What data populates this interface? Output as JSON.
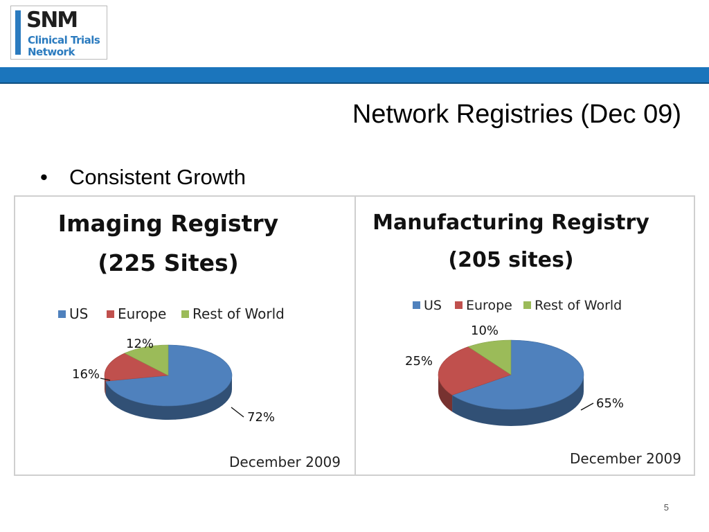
{
  "logo": {
    "mark": "SNM",
    "line1": "Clinical Trials",
    "line2": "Network"
  },
  "slide": {
    "title": "Network Registries (Dec 09)",
    "bullet": "Consistent Growth",
    "page_number": "5"
  },
  "colors": {
    "us": "#4f81bd",
    "europe": "#c0504d",
    "rest_of_world": "#9bbb59",
    "band": "#1b75bc"
  },
  "chart_data": [
    {
      "type": "pie",
      "title_line1": "Imaging Registry",
      "title_line2": "(225 Sites)",
      "categories": [
        "US",
        "Europe",
        "Rest of World"
      ],
      "values": [
        72,
        16,
        12
      ],
      "data_labels": [
        "72%",
        "16%",
        "12%"
      ],
      "legend": "top",
      "footnote": "December 2009"
    },
    {
      "type": "pie",
      "title_line1": "Manufacturing Registry",
      "title_line2": "(205 sites)",
      "categories": [
        "US",
        "Europe",
        "Rest of World"
      ],
      "values": [
        65,
        25,
        10
      ],
      "data_labels": [
        "65%",
        "25%",
        "10%"
      ],
      "legend": "top",
      "footnote": "December 2009"
    }
  ]
}
